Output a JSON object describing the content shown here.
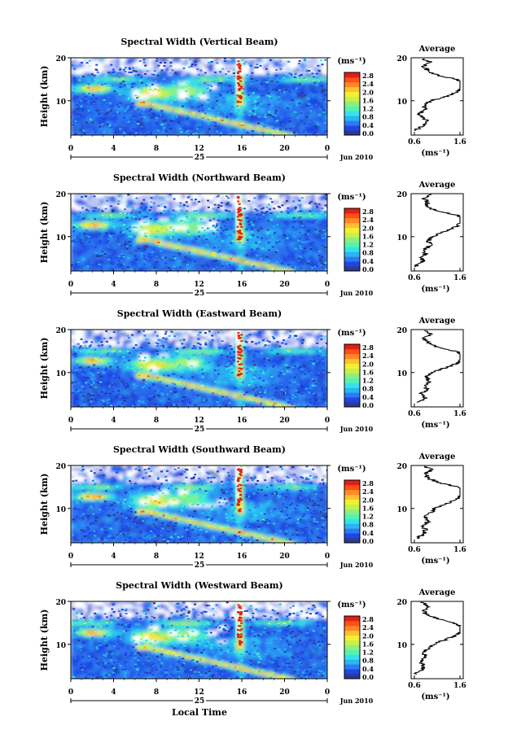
{
  "figure": {
    "xaxis_title": "Local Time",
    "date_label": "Jun 2010",
    "day_label": "25",
    "xticks": [
      "0",
      "4",
      "8",
      "12",
      "16",
      "20",
      "0"
    ],
    "yaxis_label": "Height (km)",
    "yticks": [
      "20",
      "10"
    ],
    "colorbar_unit": "(ms⁻¹)",
    "colorbar_ticks": [
      "2.8",
      "2.4",
      "2.0",
      "1.6",
      "1.2",
      "0.8",
      "0.4",
      "0.0"
    ],
    "colorbar_colors": [
      "#2e3a8c",
      "#1e46e6",
      "#2f7af0",
      "#28b6f4",
      "#35e3e6",
      "#55f2b3",
      "#8ef07a",
      "#c8f04a",
      "#f3ef37",
      "#ffc02c",
      "#ff8a22",
      "#ff4f1c",
      "#e21f15"
    ],
    "avg_title": "Average",
    "avg_xticks": [
      "0.6",
      "1.6"
    ],
    "avg_yticks": [
      "20",
      "10"
    ],
    "avg_xlabel": "(ms⁻¹)"
  },
  "panels": [
    {
      "title": "Spectral Width (Vertical Beam)"
    },
    {
      "title": "Spectral Width (Northward Beam)"
    },
    {
      "title": "Spectral Width (Eastward Beam)"
    },
    {
      "title": "Spectral Width (Southward Beam)"
    },
    {
      "title": "Spectral Width (Westward Beam)"
    }
  ],
  "chart_data": [
    {
      "type": "heatmap",
      "title": "Spectral Width (Vertical Beam)",
      "x_range_hours": [
        0,
        24
      ],
      "y_range_km": [
        2,
        20
      ],
      "color_range": [
        0,
        3.0
      ],
      "average_profile": {
        "height_km": [
          3,
          4,
          5,
          6,
          7,
          8,
          9,
          10,
          11,
          12,
          13,
          14,
          15,
          16,
          17,
          18,
          19,
          20
        ],
        "width_ms": [
          0.6,
          0.75,
          0.9,
          0.8,
          0.7,
          0.85,
          0.8,
          0.95,
          1.3,
          1.55,
          1.65,
          1.7,
          1.5,
          1.1,
          0.9,
          0.8,
          0.95,
          0.75
        ]
      }
    },
    {
      "type": "heatmap",
      "title": "Spectral Width (Northward Beam)",
      "x_range_hours": [
        0,
        24
      ],
      "y_range_km": [
        2,
        20
      ],
      "color_range": [
        0,
        3.0
      ],
      "average_profile": {
        "height_km": [
          3,
          4,
          5,
          6,
          7,
          8,
          9,
          10,
          11,
          12,
          13,
          14,
          15,
          16,
          17,
          18,
          19,
          20
        ],
        "width_ms": [
          0.6,
          0.8,
          0.75,
          0.85,
          0.8,
          0.95,
          0.9,
          1.0,
          1.2,
          1.45,
          1.6,
          1.7,
          1.55,
          1.1,
          0.85,
          0.9,
          0.8,
          1.0
        ]
      }
    },
    {
      "type": "heatmap",
      "title": "Spectral Width (Eastward Beam)",
      "x_range_hours": [
        0,
        24
      ],
      "y_range_km": [
        2,
        20
      ],
      "color_range": [
        0,
        3.0
      ],
      "average_profile": {
        "height_km": [
          3,
          4,
          5,
          6,
          7,
          8,
          9,
          10,
          11,
          12,
          13,
          14,
          15,
          16,
          17,
          18,
          19,
          20
        ],
        "width_ms": [
          0.7,
          0.85,
          0.75,
          0.9,
          0.8,
          0.95,
          0.85,
          1.0,
          1.25,
          1.5,
          1.65,
          1.7,
          1.5,
          1.05,
          0.9,
          0.8,
          0.95,
          0.8
        ]
      }
    },
    {
      "type": "heatmap",
      "title": "Spectral Width (Southward Beam)",
      "x_range_hours": [
        0,
        24
      ],
      "y_range_km": [
        2,
        20
      ],
      "color_range": [
        0,
        3.0
      ],
      "average_profile": {
        "height_km": [
          3,
          4,
          5,
          6,
          7,
          8,
          9,
          10,
          11,
          12,
          13,
          14,
          15,
          16,
          17,
          18,
          19,
          20
        ],
        "width_ms": [
          0.65,
          0.8,
          0.85,
          0.8,
          0.9,
          0.85,
          0.95,
          1.05,
          1.3,
          1.5,
          1.65,
          1.75,
          1.55,
          1.15,
          0.9,
          0.85,
          1.0,
          0.8
        ]
      }
    },
    {
      "type": "heatmap",
      "title": "Spectral Width (Westward Beam)",
      "x_range_hours": [
        0,
        24
      ],
      "y_range_km": [
        2,
        20
      ],
      "color_range": [
        0,
        3.0
      ],
      "average_profile": {
        "height_km": [
          3,
          4,
          5,
          6,
          7,
          8,
          9,
          10,
          11,
          12,
          13,
          14,
          15,
          16,
          17,
          18,
          19,
          20
        ],
        "width_ms": [
          0.6,
          0.75,
          0.8,
          0.75,
          0.85,
          0.8,
          0.9,
          1.0,
          1.25,
          1.5,
          1.6,
          1.7,
          1.45,
          1.1,
          0.85,
          0.8,
          0.9,
          0.75
        ]
      }
    }
  ]
}
